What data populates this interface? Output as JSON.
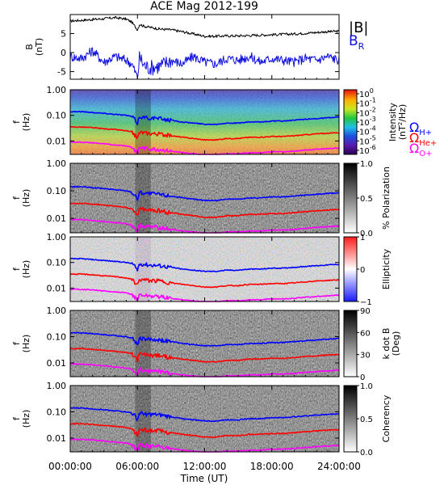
{
  "title": "ACE Mag 2012-199",
  "colors": {
    "B_total": "#000000",
    "B_R": "#1010dd",
    "H_plus": "#0000ff",
    "He_plus": "#ff0000",
    "O_plus": "#ff00ff"
  },
  "xaxis": {
    "label": "Time (UT)",
    "range_hours": [
      0,
      24
    ],
    "tick_hours": [
      0,
      6,
      12,
      18,
      24
    ],
    "tick_labels": [
      "00:00:00",
      "06:00:00",
      "12:00:00",
      "18:00:00",
      "24:00:00"
    ]
  },
  "chart_data": [
    {
      "type": "line",
      "panel": "magnetic-field",
      "ylabel": "B (nT)",
      "ylabel_parts": [
        "B",
        "(nT)"
      ],
      "ylim": [
        -7,
        10
      ],
      "yticks": [
        -5,
        0,
        5
      ],
      "ytick_labels": [
        "-5",
        "0",
        "5"
      ],
      "legend": [
        "|B|",
        "B_R"
      ],
      "legend_display": [
        {
          "main": "|B|",
          "sub": ""
        },
        {
          "main": "B",
          "sub": "R"
        }
      ],
      "series": [
        {
          "name": "|B|",
          "x": [
            0,
            1,
            2,
            3,
            4,
            5,
            5.5,
            6,
            6.2,
            6.5,
            7,
            8,
            9,
            10,
            11,
            12,
            13,
            14,
            15,
            16,
            17,
            18,
            19,
            20,
            21,
            22,
            23,
            24
          ],
          "values": [
            8.3,
            8.5,
            8.7,
            8.9,
            9.2,
            8.8,
            8.0,
            6.0,
            7.5,
            7.0,
            6.7,
            6.2,
            6.0,
            5.5,
            4.9,
            4.3,
            4.3,
            4.4,
            4.4,
            4.5,
            4.6,
            4.7,
            4.8,
            4.9,
            5.1,
            5.3,
            5.5,
            5.6
          ]
        },
        {
          "name": "B_R",
          "x": [
            0,
            1,
            2,
            3,
            4,
            5,
            5.5,
            6,
            6.2,
            6.5,
            7,
            8,
            9,
            10,
            11,
            12,
            13,
            14,
            15,
            16,
            17,
            18,
            19,
            20,
            21,
            22,
            23,
            24
          ],
          "values": [
            -1.0,
            -1.5,
            0.5,
            -2.5,
            -1.0,
            -2.0,
            -3.0,
            -6.5,
            -1.0,
            -3.0,
            -4.0,
            -3.5,
            -2.0,
            -3.0,
            -1.0,
            -2.5,
            -3.0,
            -1.5,
            -2.0,
            -1.0,
            -2.5,
            -1.5,
            -2.0,
            -2.5,
            -1.5,
            -2.0,
            -1.0,
            -2.0
          ]
        }
      ]
    },
    {
      "type": "heatmap",
      "panel": "power-spectrum",
      "ylabel": "f (Hz)",
      "yscale": "log",
      "ylim": [
        0.003,
        1.0
      ],
      "yticks": [
        1.0,
        0.1,
        0.01
      ],
      "ytick_labels": [
        "1.00",
        "0.10",
        "0.01"
      ],
      "colorbar": {
        "label": "Intensity (nT²/Hz)",
        "label_parts": [
          "Intensity",
          "(nT",
          "2",
          "/Hz)"
        ],
        "scale": "log",
        "range": [
          1e-06,
          1
        ],
        "tick_labels": [
          "10^0",
          "10^-1",
          "10^-2",
          "10^-3",
          "10^-4",
          "10^-5",
          "10^-6"
        ],
        "tick_display": [
          {
            "base": "10",
            "exp": "0"
          },
          {
            "base": "10",
            "exp": "-1"
          },
          {
            "base": "10",
            "exp": "-2"
          },
          {
            "base": "10",
            "exp": "-3"
          },
          {
            "base": "10",
            "exp": "-4"
          },
          {
            "base": "10",
            "exp": "-5"
          },
          {
            "base": "10",
            "exp": "-6"
          }
        ],
        "palette": "rainbow"
      },
      "legend": [
        "ΩH+",
        "ΩHe+",
        "ΩO+"
      ],
      "legend_display": [
        {
          "main": "Ω",
          "sub": "H+"
        },
        {
          "main": "Ω",
          "sub": "He+"
        },
        {
          "main": "Ω",
          "sub": "O+"
        }
      ]
    },
    {
      "type": "heatmap",
      "panel": "polarization",
      "ylabel": "f (Hz)",
      "yscale": "log",
      "ylim": [
        0.003,
        1.0
      ],
      "yticks": [
        1.0,
        0.1,
        0.01
      ],
      "ytick_labels": [
        "1.00",
        "0.10",
        "0.01"
      ],
      "colorbar": {
        "label": "% Polarization",
        "range": [
          0,
          1
        ],
        "ticks": [
          1.0,
          0.5,
          0.0
        ],
        "tick_labels": [
          "1.0",
          "0.5",
          "0.0"
        ],
        "palette": "grayscale"
      }
    },
    {
      "type": "heatmap",
      "panel": "ellipticity",
      "ylabel": "f (Hz)",
      "yscale": "log",
      "ylim": [
        0.003,
        1.0
      ],
      "yticks": [
        1.0,
        0.1,
        0.01
      ],
      "ytick_labels": [
        "1.00",
        "0.10",
        "0.01"
      ],
      "colorbar": {
        "label": "Ellipticity",
        "range": [
          -1,
          1
        ],
        "ticks": [
          1,
          0,
          -1
        ],
        "tick_labels": [
          "1",
          "0",
          "−1"
        ],
        "palette": "blue-white-red"
      }
    },
    {
      "type": "heatmap",
      "panel": "k-dot-b",
      "ylabel": "f (Hz)",
      "yscale": "log",
      "ylim": [
        0.003,
        1.0
      ],
      "yticks": [
        1.0,
        0.1,
        0.01
      ],
      "ytick_labels": [
        "1.00",
        "0.10",
        "0.01"
      ],
      "colorbar": {
        "label": "k dot B (Deg)",
        "label_parts": [
          "k dot B",
          "(Deg)"
        ],
        "range": [
          0,
          90
        ],
        "ticks": [
          90,
          60,
          30,
          0
        ],
        "tick_labels": [
          "90",
          "60",
          "30",
          "0"
        ],
        "palette": "grayscale"
      }
    },
    {
      "type": "heatmap",
      "panel": "coherency",
      "ylabel": "f (Hz)",
      "yscale": "log",
      "ylim": [
        0.003,
        1.0
      ],
      "yticks": [
        1.0,
        0.1,
        0.01
      ],
      "ytick_labels": [
        "1.00",
        "0.10",
        "0.01"
      ],
      "colorbar": {
        "label": "Coherency",
        "range": [
          0,
          1
        ],
        "ticks": [
          1.0,
          0.5,
          0.0
        ],
        "tick_labels": [
          "1.0",
          "0.5",
          "0.0"
        ],
        "palette": "grayscale"
      }
    }
  ],
  "gyrofrequency_curves_hz": {
    "x": [
      0,
      1,
      2,
      3,
      4,
      5,
      5.5,
      6,
      6.2,
      6.5,
      7,
      8,
      9,
      10,
      11,
      12,
      13,
      14,
      15,
      16,
      17,
      18,
      19,
      20,
      21,
      22,
      23,
      24
    ],
    "H_plus": [
      0.14,
      0.14,
      0.13,
      0.12,
      0.11,
      0.1,
      0.09,
      0.05,
      0.09,
      0.085,
      0.08,
      0.075,
      0.065,
      0.055,
      0.05,
      0.045,
      0.045,
      0.05,
      0.05,
      0.055,
      0.055,
      0.06,
      0.06,
      0.065,
      0.07,
      0.075,
      0.08,
      0.085
    ],
    "He_plus": [
      0.035,
      0.035,
      0.033,
      0.03,
      0.028,
      0.025,
      0.022,
      0.013,
      0.022,
      0.021,
      0.02,
      0.019,
      0.016,
      0.014,
      0.0125,
      0.011,
      0.011,
      0.0125,
      0.0125,
      0.014,
      0.014,
      0.015,
      0.015,
      0.016,
      0.0175,
      0.019,
      0.02,
      0.021
    ],
    "O_plus": [
      0.009,
      0.009,
      0.0085,
      0.0077,
      0.007,
      0.0065,
      0.0057,
      0.0033,
      0.0057,
      0.0053,
      0.005,
      0.0047,
      0.004,
      0.0035,
      0.0032,
      0.0029,
      0.0029,
      0.0032,
      0.0032,
      0.0035,
      0.0035,
      0.0038,
      0.0038,
      0.004,
      0.0044,
      0.0047,
      0.005,
      0.0053
    ]
  }
}
